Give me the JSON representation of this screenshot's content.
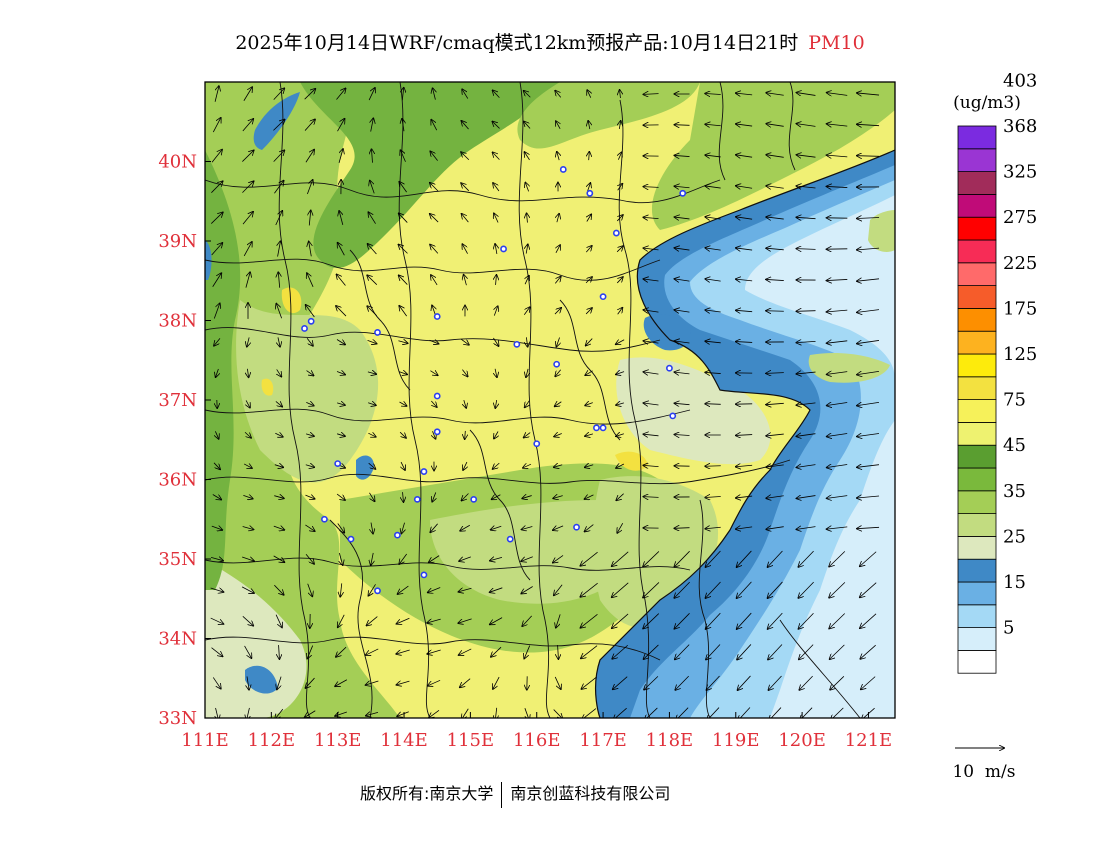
{
  "title": {
    "main": "2025年10月14日WRF/cmaq模式12km预报产品:10月14日21时",
    "pollutant": "PM10"
  },
  "axes": {
    "lon_ticks": [
      "111E",
      "112E",
      "113E",
      "114E",
      "115E",
      "116E",
      "117E",
      "118E",
      "119E",
      "120E",
      "121E"
    ],
    "lat_ticks": [
      "33N",
      "34N",
      "35N",
      "36N",
      "37N",
      "38N",
      "39N",
      "40N"
    ],
    "lon_range": [
      111,
      121.4
    ],
    "lat_range": [
      33,
      41
    ],
    "tick_color": "#e0303a"
  },
  "legend": {
    "unit": "(ug/m3)",
    "labels": [
      "5",
      "15",
      "25",
      "35",
      "45",
      "75",
      "125",
      "175",
      "225",
      "275",
      "325",
      "368",
      "403"
    ],
    "colors": [
      "#ffffff",
      "#d6eefa",
      "#a4d9f5",
      "#6ab0e4",
      "#3f89c6",
      "#dde8be",
      "#c2dc80",
      "#a4ce56",
      "#7ab93c",
      "#5a9e30",
      "#eef270",
      "#f6f15a",
      "#f3e140",
      "#fdeb0c",
      "#fdb21f",
      "#fd8f00",
      "#f65c2a",
      "#ff6a6a",
      "#f72c56",
      "#ff0000",
      "#c00b78",
      "#a12c5a",
      "#9a35d3",
      "#7b2be0"
    ],
    "wind_label": "10  m/s"
  },
  "footer": {
    "left": "版权所有:南京大学",
    "right": "南京创蓝科技有限公司"
  },
  "map_colors": {
    "yellow": "#f0f074",
    "dark_green": "#74b340",
    "mid_green": "#a4ce56",
    "light_green": "#c2dc80",
    "pale_green": "#dde8be",
    "sea_light": "#d6eefa",
    "sea_mid": "#a4d9f5",
    "sea_blue": "#6ab0e4",
    "sea_dark": "#3f89c6",
    "city_marker": "#2a3ff0"
  },
  "city_markers": [
    [
      116.4,
      39.9
    ],
    [
      115.5,
      38.9
    ],
    [
      116.8,
      39.6
    ],
    [
      117.2,
      39.1
    ],
    [
      118.2,
      39.6
    ],
    [
      112.5,
      37.9
    ],
    [
      113.6,
      37.85
    ],
    [
      114.5,
      38.05
    ],
    [
      115.7,
      37.7
    ],
    [
      116.3,
      37.45
    ],
    [
      117.0,
      38.3
    ],
    [
      118.0,
      37.4
    ],
    [
      118.05,
      36.8
    ],
    [
      117.0,
      36.65
    ],
    [
      114.5,
      37.05
    ],
    [
      114.5,
      36.6
    ],
    [
      113.0,
      36.2
    ],
    [
      114.3,
      36.1
    ],
    [
      114.2,
      35.75
    ],
    [
      115.05,
      35.75
    ],
    [
      116.6,
      35.4
    ],
    [
      115.6,
      35.25
    ],
    [
      112.8,
      35.5
    ],
    [
      113.2,
      35.25
    ],
    [
      113.9,
      35.3
    ],
    [
      114.3,
      34.8
    ],
    [
      113.6,
      34.6
    ],
    [
      116.0,
      36.45
    ],
    [
      116.9,
      36.65
    ],
    [
      112.6,
      37.99
    ]
  ]
}
